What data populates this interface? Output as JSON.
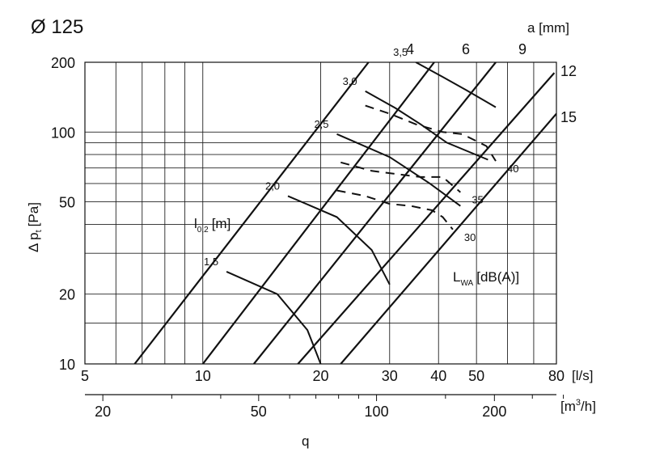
{
  "chart_data": {
    "type": "line",
    "title": "Ø 125",
    "ylabel": "Δ p",
    "ylabel_sub": "t",
    "ylabel_unit": "[Pa]",
    "xlabel": "q",
    "x_unit": "[l/s]",
    "x2_unit_prefix": "[m",
    "x2_unit_sup": "3",
    "x2_unit_suffix": "/h]",
    "y_scale": "log",
    "x_scale": "log",
    "xlim": [
      5,
      80
    ],
    "ylim": [
      10,
      200
    ],
    "grid": true,
    "y_ticks": [
      {
        "value": 10,
        "label": "10"
      },
      {
        "value": 20,
        "label": "20"
      },
      {
        "value": 50,
        "label": "50"
      },
      {
        "value": 100,
        "label": "100"
      },
      {
        "value": 200,
        "label": "200"
      }
    ],
    "y_grid": [
      10,
      15,
      20,
      30,
      40,
      50,
      60,
      70,
      80,
      90,
      100,
      200
    ],
    "x_ticks": [
      {
        "value": 5,
        "label": "5"
      },
      {
        "value": 10,
        "label": "10"
      },
      {
        "value": 20,
        "label": "20"
      },
      {
        "value": 30,
        "label": "30"
      },
      {
        "value": 40,
        "label": "40"
      },
      {
        "value": 50,
        "label": "50"
      },
      {
        "value": 80,
        "label": "80"
      }
    ],
    "x_grid": [
      5,
      6,
      7,
      8,
      9,
      10,
      20,
      30,
      40,
      50,
      60,
      70,
      80
    ],
    "x2_ticks": [
      {
        "value": 20,
        "label": "20"
      },
      {
        "value": 50,
        "label": "50"
      },
      {
        "value": 100,
        "label": "100"
      },
      {
        "value": 200,
        "label": "200"
      }
    ],
    "x2_minor": [
      20,
      30,
      40,
      50,
      60,
      70,
      80,
      90,
      100,
      150,
      200,
      250,
      300
    ],
    "a_label": "a [mm]",
    "a_series": [
      {
        "name": "4",
        "x": [
          6.7,
          26.5
        ],
        "y": [
          10,
          200
        ]
      },
      {
        "name": "6",
        "x": [
          10.0,
          39.0
        ],
        "y": [
          10,
          200
        ]
      },
      {
        "name": "9",
        "x": [
          13.5,
          56.0
        ],
        "y": [
          10,
          200
        ]
      },
      {
        "name": "12",
        "x": [
          17.5,
          79.0
        ],
        "y": [
          10,
          180
        ]
      },
      {
        "name": "15",
        "x": [
          22.5,
          80.0
        ],
        "y": [
          10,
          120
        ]
      }
    ],
    "throw_label": "l",
    "throw_label_sub": "0,2",
    "throw_label_unit": "[m]",
    "throw_series": [
      {
        "name": "1,5",
        "x": [
          11.5,
          15.5,
          18.5,
          20.0
        ],
        "y": [
          25,
          20,
          14,
          10
        ]
      },
      {
        "name": "2,0",
        "x": [
          16.5,
          22.0,
          27.0,
          30.0
        ],
        "y": [
          53,
          43,
          31,
          22
        ]
      },
      {
        "name": "2,5",
        "x": [
          22.0,
          30.0,
          38.0,
          45.5
        ],
        "y": [
          98,
          78,
          60,
          48
        ]
      },
      {
        "name": "3,0",
        "x": [
          26.0,
          31.0,
          36.0,
          42.0,
          53.5
        ],
        "y": [
          150,
          127,
          108,
          90,
          76
        ]
      },
      {
        "name": "3,5",
        "x": [
          35.0,
          41.0,
          47.0,
          56.0
        ],
        "y": [
          200,
          173,
          152,
          128
        ]
      }
    ],
    "sound_label": "L",
    "sound_label_sub": "WA",
    "sound_label_unit": "[dB(A)]",
    "sound_series": [
      {
        "name": "30",
        "x": [
          22.0,
          26.0,
          30.0,
          34.0,
          38.5,
          41.0,
          43.5
        ],
        "y": [
          56,
          53,
          49,
          48,
          46,
          43,
          38
        ]
      },
      {
        "name": "35",
        "x": [
          22.5,
          27.0,
          31.0,
          36.0,
          41.0,
          45.5
        ],
        "y": [
          74,
          68,
          66,
          64,
          64,
          55
        ]
      },
      {
        "name": "40",
        "x": [
          26.0,
          30.0,
          35.0,
          41.0,
          46.0,
          53.0,
          56.0
        ],
        "y": [
          130,
          120,
          108,
          100,
          98,
          87,
          75
        ]
      }
    ]
  }
}
